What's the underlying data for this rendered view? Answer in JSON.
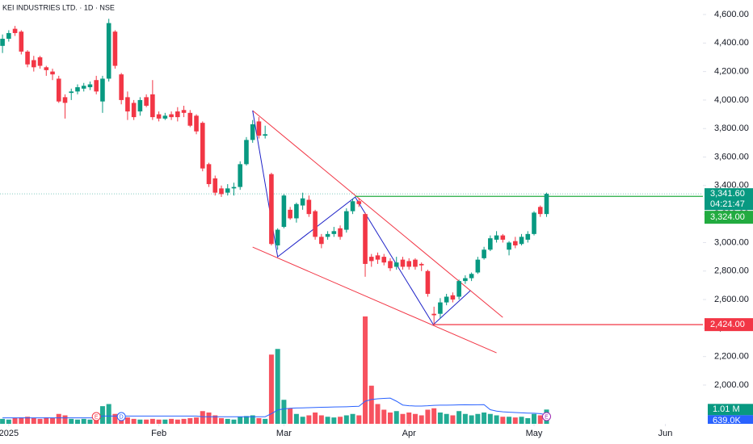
{
  "chart_data": {
    "type": "candlestick",
    "title": "KEI INDUSTRIES LTD. · 1D · NSE",
    "xlim": [
      -0.4,
      112
    ],
    "xticks": [
      {
        "value": 1,
        "label": "2025"
      },
      {
        "value": 25,
        "label": "Feb"
      },
      {
        "value": 45,
        "label": "Mar"
      },
      {
        "value": 65,
        "label": "Apr"
      },
      {
        "value": 85,
        "label": "May"
      },
      {
        "value": 106,
        "label": "Jun"
      }
    ],
    "ylim": [
      1728,
      4702
    ],
    "yticks": [
      {
        "value": 2000,
        "label": "2,000.00"
      },
      {
        "value": 2200,
        "label": "2,200.00"
      },
      {
        "value": 2400,
        "label": "2,400.00"
      },
      {
        "value": 2600,
        "label": "2,600.00"
      },
      {
        "value": 2800,
        "label": "2,800.00"
      },
      {
        "value": 3000,
        "label": "3,000.00"
      },
      {
        "value": 3200,
        "label": "3,200.00"
      },
      {
        "value": 3400,
        "label": "3,400.00"
      },
      {
        "value": 3600,
        "label": "3,600.00"
      },
      {
        "value": 3800,
        "label": "3,800.00"
      },
      {
        "value": 4000,
        "label": "4,000.00"
      },
      {
        "value": 4200,
        "label": "4,200.00"
      },
      {
        "value": 4400,
        "label": "4,400.00"
      },
      {
        "value": 4600,
        "label": "4,600.00"
      }
    ],
    "up_color": "#089981",
    "down_color": "#f23645",
    "volume_up_color": "#22ab94",
    "volume_down_color": "#f7525f",
    "volume_ma_color": "#2962ff",
    "open": [
      4380,
      4430,
      4500,
      4480,
      4340,
      4280,
      4300,
      4230,
      4200,
      4150,
      4020,
      4050,
      4060,
      4080,
      4090,
      4140,
      3990,
      4150,
      4480,
      4180,
      4020,
      3980,
      3920,
      4020,
      4040,
      3900,
      3870,
      3900,
      3920,
      3930,
      3910,
      3890,
      3840,
      3550,
      3450,
      3380,
      3350,
      3380,
      3390,
      3550,
      3720,
      3850,
      3750,
      3480,
      2980,
      3110,
      3230,
      3170,
      3260,
      3300,
      3220,
      3040,
      3040,
      3060,
      3100,
      3090,
      3220,
      3290,
      3200,
      2900,
      2910,
      2900,
      2870,
      2830,
      2880,
      2870,
      2880,
      2850,
      2800,
      2500,
      2500,
      2580,
      2630,
      2620,
      2730,
      2750,
      2790,
      2890,
      2950,
      3020,
      3050,
      2950,
      3010,
      2990,
      3020,
      3060,
      3250,
      3200
    ],
    "high": [
      4460,
      4490,
      4520,
      4490,
      4350,
      4310,
      4310,
      4240,
      4220,
      4170,
      4040,
      4080,
      4110,
      4120,
      4130,
      4170,
      4170,
      4570,
      4490,
      4190,
      4060,
      4000,
      4020,
      4040,
      4140,
      3920,
      3910,
      3920,
      3950,
      3960,
      3930,
      3900,
      3850,
      3560,
      3470,
      3400,
      3410,
      3420,
      3570,
      3740,
      3860,
      3880,
      3820,
      3490,
      3100,
      3340,
      3250,
      3280,
      3350,
      3330,
      3230,
      3060,
      3080,
      3110,
      3120,
      3240,
      3310,
      3310,
      3210,
      2920,
      2930,
      2920,
      2890,
      2900,
      2900,
      2890,
      2890,
      2860,
      2810,
      2550,
      2610,
      2640,
      2650,
      2740,
      2770,
      2790,
      2900,
      2970,
      3050,
      3080,
      3060,
      3010,
      3040,
      3060,
      3080,
      3220,
      3260,
      3350
    ],
    "low": [
      4330,
      4410,
      4450,
      4320,
      4230,
      4200,
      4220,
      4170,
      4140,
      3980,
      3870,
      4000,
      4040,
      4060,
      4070,
      4040,
      3910,
      4130,
      4220,
      3970,
      3860,
      3860,
      3890,
      3950,
      3860,
      3850,
      3860,
      3860,
      3850,
      3880,
      3810,
      3760,
      3500,
      3390,
      3330,
      3320,
      3330,
      3330,
      3370,
      3540,
      3700,
      3730,
      3730,
      2980,
      2950,
      3100,
      3160,
      3140,
      3230,
      3180,
      3020,
      2960,
      3020,
      3040,
      3020,
      3070,
      3200,
      3250,
      2760,
      2830,
      2850,
      2840,
      2800,
      2810,
      2810,
      2810,
      2810,
      2800,
      2620,
      2424,
      2470,
      2560,
      2580,
      2600,
      2710,
      2730,
      2780,
      2880,
      2940,
      3000,
      3000,
      2910,
      2960,
      2980,
      3000,
      3050,
      3180,
      3180
    ],
    "close": [
      4430,
      4470,
      4470,
      4340,
      4250,
      4230,
      4240,
      4210,
      4180,
      3990,
      3980,
      4060,
      4090,
      4100,
      4110,
      4060,
      4150,
      4540,
      4240,
      4000,
      3920,
      3880,
      4000,
      3960,
      3880,
      3870,
      3890,
      3880,
      3880,
      3910,
      3820,
      3780,
      3520,
      3410,
      3350,
      3340,
      3380,
      3390,
      3550,
      3720,
      3830,
      3750,
      3760,
      2990,
      3090,
      3330,
      3170,
      3270,
      3310,
      3200,
      3040,
      2990,
      3060,
      3080,
      3040,
      3220,
      3290,
      3270,
      2850,
      2870,
      2880,
      2860,
      2820,
      2860,
      2830,
      2830,
      2830,
      2840,
      2640,
      2490,
      2580,
      2620,
      2600,
      2730,
      2750,
      2780,
      2880,
      2950,
      3030,
      3050,
      3020,
      3000,
      2980,
      3040,
      3060,
      3210,
      3200,
      3341.6
    ],
    "volume_ylim": [
      0,
      30
    ],
    "volume": [
      0.35,
      0.3,
      0.4,
      0.45,
      0.5,
      0.4,
      0.35,
      0.45,
      0.4,
      0.7,
      0.6,
      0.35,
      0.3,
      0.35,
      0.3,
      0.5,
      1.25,
      1.4,
      0.7,
      0.5,
      0.45,
      0.35,
      0.3,
      0.3,
      0.35,
      0.3,
      0.3,
      0.35,
      0.3,
      0.35,
      0.4,
      0.45,
      0.9,
      0.8,
      0.6,
      0.4,
      0.35,
      0.3,
      0.5,
      0.55,
      0.6,
      0.4,
      0.35,
      4.9,
      5.3,
      1.7,
      1.1,
      0.7,
      0.5,
      0.6,
      0.8,
      0.6,
      0.5,
      0.45,
      0.5,
      0.6,
      0.7,
      0.6,
      7.6,
      2.7,
      1.4,
      1.0,
      0.8,
      0.9,
      0.7,
      0.8,
      0.7,
      0.6,
      1.0,
      1.1,
      0.8,
      0.7,
      0.6,
      0.9,
      0.7,
      0.6,
      0.7,
      0.8,
      0.7,
      0.6,
      0.5,
      0.5,
      0.45,
      0.5,
      0.4,
      0.7,
      0.6,
      1.01
    ],
    "volume_last_label": "1.01 M",
    "volume_ma": [
      0.42,
      0.42,
      0.42,
      0.42,
      0.42,
      0.42,
      0.42,
      0.42,
      0.42,
      0.42,
      0.42,
      0.42,
      0.42,
      0.42,
      0.42,
      0.42,
      0.55,
      0.55,
      0.55,
      0.55,
      0.55,
      0.55,
      0.55,
      0.55,
      0.55,
      0.55,
      0.55,
      0.55,
      0.55,
      0.55,
      0.55,
      0.55,
      0.5,
      0.5,
      0.5,
      0.5,
      0.5,
      0.5,
      0.5,
      0.5,
      0.5,
      0.5,
      0.5,
      0.72,
      0.98,
      1.06,
      1.1,
      1.12,
      1.13,
      1.14,
      1.16,
      1.17,
      1.18,
      1.19,
      1.2,
      1.21,
      1.23,
      1.24,
      1.6,
      1.72,
      1.77,
      1.8,
      1.82,
      1.6,
      1.33,
      1.28,
      1.26,
      1.26,
      1.28,
      1.31,
      1.32,
      1.32,
      1.33,
      1.34,
      1.35,
      1.34,
      1.35,
      1.36,
      1.0,
      0.9,
      0.85,
      0.82,
      0.8,
      0.78,
      0.76,
      0.75,
      0.72,
      0.639
    ],
    "volume_ma_last_label": "639.0K",
    "last_price": {
      "value": 3341.6,
      "label": "3,341.60",
      "countdown": "04:21:47"
    },
    "levels": [
      {
        "start": 56.4,
        "value": 3324,
        "label": "3,324.00",
        "color": "#22ab40"
      },
      {
        "start": 68.9,
        "value": 2424,
        "label": "2,424.00",
        "color": "#f23645"
      }
    ],
    "drawings": [
      {
        "color": "#f23645",
        "x": [
          40,
          80
        ],
        "y": [
          3926,
          2475
        ]
      },
      {
        "color": "#f23645",
        "x": [
          40,
          79
        ],
        "y": [
          2968,
          2226
        ]
      },
      {
        "color": "#1e22c8",
        "x": [
          40,
          44,
          56.4,
          68.9,
          74.8
        ],
        "y": [
          3926,
          2900,
          3319,
          2424,
          2662
        ]
      }
    ],
    "events": [
      {
        "x": 15,
        "label": "E",
        "color": "#f23645"
      },
      {
        "x": 19,
        "label": "D",
        "color": "#2962ff"
      },
      {
        "x": 87,
        "label": "E",
        "color": "#9c27b0"
      }
    ]
  }
}
